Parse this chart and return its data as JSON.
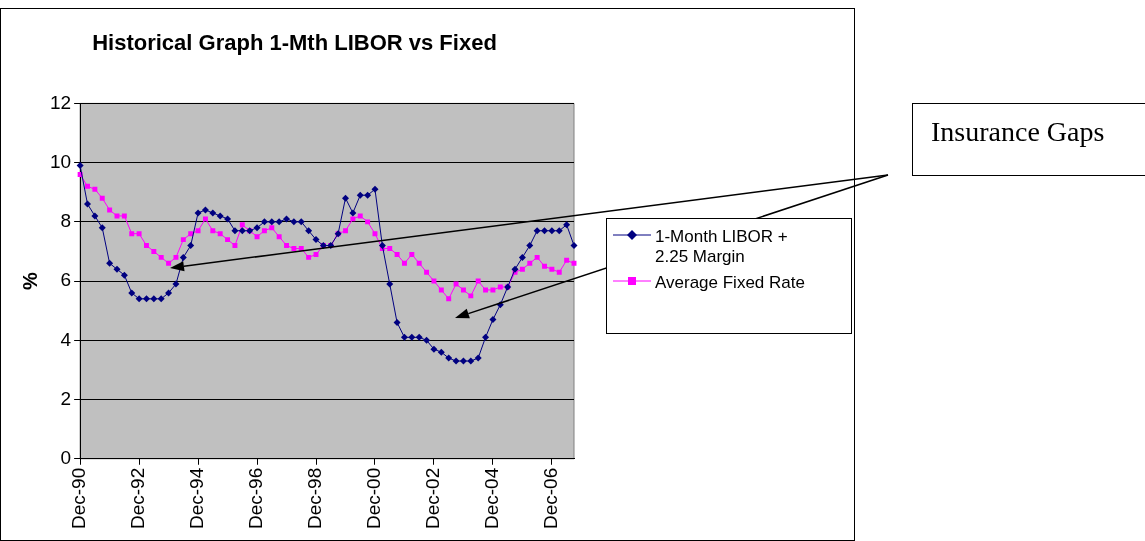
{
  "chart_data": {
    "type": "line",
    "title": "Historical Graph 1-Mth LIBOR vs Fixed",
    "ylabel": "%",
    "categories": [
      "Dec-90",
      null,
      null,
      null,
      null,
      null,
      null,
      null,
      "Dec-92",
      null,
      null,
      null,
      null,
      null,
      null,
      null,
      "Dec-94",
      null,
      null,
      null,
      null,
      null,
      null,
      null,
      "Dec-96",
      null,
      null,
      null,
      null,
      null,
      null,
      null,
      "Dec-98",
      null,
      null,
      null,
      null,
      null,
      null,
      null,
      "Dec-00",
      null,
      null,
      null,
      null,
      null,
      null,
      null,
      "Dec-02",
      null,
      null,
      null,
      null,
      null,
      null,
      null,
      "Dec-04",
      null,
      null,
      null,
      null,
      null,
      null,
      null,
      "Dec-06",
      null,
      null,
      null
    ],
    "series": [
      {
        "name": "1-Month LIBOR + 2.25 Margin",
        "color": "#000080",
        "marker": "diamond",
        "values": [
          9.9,
          8.6,
          8.2,
          7.8,
          6.6,
          6.4,
          6.2,
          5.6,
          5.4,
          5.4,
          5.4,
          5.4,
          5.6,
          5.9,
          6.8,
          7.2,
          8.3,
          8.4,
          8.3,
          8.2,
          8.1,
          7.7,
          7.7,
          7.7,
          7.8,
          8.0,
          8.0,
          8.0,
          8.1,
          8.0,
          8.0,
          7.7,
          7.4,
          7.2,
          7.2,
          7.6,
          8.8,
          8.3,
          8.9,
          8.9,
          9.1,
          7.2,
          5.9,
          4.6,
          4.1,
          4.1,
          4.1,
          4.0,
          3.7,
          3.6,
          3.4,
          3.3,
          3.3,
          3.3,
          3.4,
          4.1,
          4.7,
          5.2,
          5.8,
          6.4,
          6.8,
          7.2,
          7.7,
          7.7,
          7.7,
          7.7,
          7.9,
          7.2
        ]
      },
      {
        "name": "Average Fixed Rate",
        "color": "#ff00ff",
        "marker": "square",
        "values": [
          9.6,
          9.2,
          9.1,
          8.8,
          8.4,
          8.2,
          8.2,
          7.6,
          7.6,
          7.2,
          7.0,
          6.8,
          6.6,
          6.8,
          7.4,
          7.6,
          7.7,
          8.1,
          7.7,
          7.6,
          7.4,
          7.2,
          7.9,
          7.7,
          7.5,
          7.7,
          7.8,
          7.5,
          7.2,
          7.1,
          7.1,
          6.8,
          6.9,
          7.2,
          7.2,
          7.6,
          7.7,
          8.1,
          8.2,
          8.0,
          7.6,
          7.1,
          7.1,
          6.9,
          6.6,
          6.9,
          6.6,
          6.3,
          6.0,
          5.7,
          5.4,
          5.9,
          5.7,
          5.5,
          6.0,
          5.7,
          5.7,
          5.8,
          5.8,
          6.3,
          6.4,
          6.6,
          6.8,
          6.5,
          6.4,
          6.3,
          6.7,
          6.6
        ]
      }
    ],
    "ylim": [
      0,
      12
    ],
    "yticks": [
      0,
      2,
      4,
      6,
      8,
      10,
      12
    ],
    "grid": "y",
    "legend": "right",
    "line_style": "solid",
    "annotations": [
      "Insurance Gaps"
    ]
  }
}
